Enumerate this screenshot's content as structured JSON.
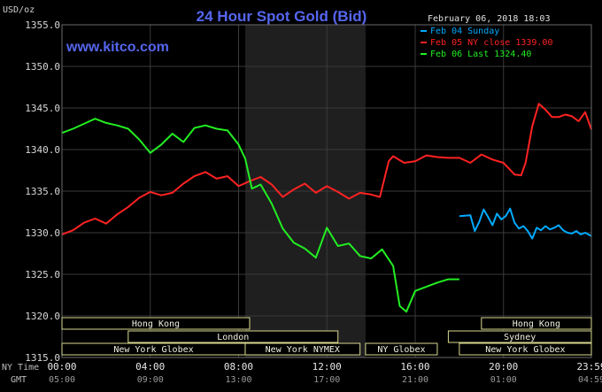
{
  "chart_data": {
    "type": "line",
    "title": "24 Hour Spot Gold (Bid)",
    "unit_label": "USD/oz",
    "watermark": "www.kitco.com",
    "timestamp": "February 06, 2018 18:03",
    "ylim": [
      1315,
      1355
    ],
    "y_ticks": [
      "1355.0",
      "1350.0",
      "1345.0",
      "1340.0",
      "1335.0",
      "1330.0",
      "1325.0",
      "1320.0",
      "1315.0"
    ],
    "x_axis_label_ny": "NY Time",
    "x_axis_label_gmt": "GMT",
    "x_ticks_ny": [
      "00:00",
      "04:00",
      "08:00",
      "12:00",
      "16:00",
      "20:00",
      "23:59"
    ],
    "x_ticks_gmt": [
      "05:00",
      "09:00",
      "13:00",
      "17:00",
      "21:00",
      "01:00",
      "04:59"
    ],
    "shaded_region": {
      "from": 8.3,
      "to": 13.75
    },
    "legend": [
      {
        "label": "Feb 04 Sunday",
        "color": "#00aaff"
      },
      {
        "label": "Feb 05 NY close 1339.00",
        "color": "#ff2222"
      },
      {
        "label": "Feb 06 Last 1324.40",
        "color": "#22ee22"
      }
    ],
    "sessions": [
      {
        "label": "Hong Kong",
        "from": 0.0,
        "to": 8.5,
        "row": 1
      },
      {
        "label": "London",
        "from": 3.0,
        "to": 12.5,
        "row": 2
      },
      {
        "label": "New York Globex",
        "from": 0.0,
        "to": 8.3,
        "row": 3
      },
      {
        "label": "New York NYMEX",
        "from": 8.3,
        "to": 13.5,
        "row": 3
      },
      {
        "label": "NY Globex",
        "from": 13.75,
        "to": 17.0,
        "row": 3
      },
      {
        "label": "Hong Kong",
        "from": 19.0,
        "to": 23.98,
        "row": 1
      },
      {
        "label": "Sydney",
        "from": 17.5,
        "to": 23.98,
        "row": 2
      },
      {
        "label": "New York Globex",
        "from": 18.0,
        "to": 23.98,
        "row": 3
      }
    ],
    "series": [
      {
        "name": "Feb 04 Sunday",
        "color": "#00aaff",
        "x": [
          18.0,
          18.5,
          18.7,
          18.9,
          19.1,
          19.3,
          19.5,
          19.7,
          19.9,
          20.1,
          20.3,
          20.5,
          20.7,
          20.9,
          21.1,
          21.3,
          21.5,
          21.7,
          21.9,
          22.1,
          22.3,
          22.5,
          22.7,
          22.9,
          23.1,
          23.3,
          23.5,
          23.7,
          23.98
        ],
        "y": [
          1332.0,
          1332.1,
          1330.2,
          1331.3,
          1332.8,
          1331.9,
          1330.9,
          1332.3,
          1331.6,
          1332.0,
          1332.9,
          1331.2,
          1330.5,
          1330.8,
          1330.2,
          1329.3,
          1330.6,
          1330.3,
          1330.8,
          1330.4,
          1330.6,
          1330.9,
          1330.3,
          1330.0,
          1329.9,
          1330.2,
          1329.8,
          1330.0,
          1329.6
        ]
      },
      {
        "name": "Feb 05 NY close 1339.00",
        "color": "#ff2222",
        "x": [
          0.0,
          0.5,
          1.0,
          1.5,
          2.0,
          2.5,
          3.0,
          3.5,
          4.0,
          4.5,
          5.0,
          5.5,
          6.0,
          6.5,
          7.0,
          7.5,
          8.0,
          8.5,
          9.0,
          9.5,
          10.0,
          10.5,
          11.0,
          11.5,
          12.0,
          12.5,
          13.0,
          13.5,
          14.0,
          14.4,
          14.8,
          15.0,
          15.5,
          16.0,
          16.5,
          17.0,
          17.5,
          18.0,
          18.5,
          19.0,
          19.5,
          20.0,
          20.5,
          20.8,
          21.0,
          21.3,
          21.6,
          21.9,
          22.2,
          22.5,
          22.8,
          23.1,
          23.4,
          23.7,
          23.98
        ],
        "y": [
          1329.8,
          1330.3,
          1331.2,
          1331.7,
          1331.1,
          1332.2,
          1333.1,
          1334.2,
          1334.9,
          1334.5,
          1334.8,
          1335.9,
          1336.8,
          1337.3,
          1336.5,
          1336.8,
          1335.6,
          1336.2,
          1336.7,
          1335.8,
          1334.3,
          1335.2,
          1335.9,
          1334.8,
          1335.6,
          1334.9,
          1334.1,
          1334.8,
          1334.6,
          1334.3,
          1338.6,
          1339.2,
          1338.4,
          1338.6,
          1339.3,
          1339.1,
          1339.0,
          1339.0,
          1338.4,
          1339.4,
          1338.8,
          1338.4,
          1337.0,
          1336.9,
          1338.4,
          1342.8,
          1345.5,
          1344.8,
          1343.9,
          1343.9,
          1344.2,
          1344.0,
          1343.4,
          1344.5,
          1342.4
        ]
      },
      {
        "name": "Feb 06 Last 1324.40",
        "color": "#22ee22",
        "x": [
          0.0,
          0.5,
          1.0,
          1.5,
          2.0,
          2.5,
          3.0,
          3.5,
          4.0,
          4.5,
          5.0,
          5.5,
          6.0,
          6.5,
          7.0,
          7.5,
          8.0,
          8.3,
          8.6,
          9.0,
          9.5,
          10.0,
          10.5,
          11.0,
          11.5,
          12.0,
          12.5,
          13.0,
          13.5,
          14.0,
          14.5,
          15.0,
          15.3,
          15.6,
          16.0,
          16.5,
          17.0,
          17.5,
          18.0
        ],
        "y": [
          1342.0,
          1342.5,
          1343.1,
          1343.7,
          1343.2,
          1342.9,
          1342.5,
          1341.2,
          1339.6,
          1340.6,
          1341.9,
          1340.9,
          1342.6,
          1342.9,
          1342.5,
          1342.3,
          1340.6,
          1338.9,
          1335.3,
          1335.8,
          1333.5,
          1330.5,
          1328.8,
          1328.1,
          1327.0,
          1330.6,
          1328.4,
          1328.7,
          1327.2,
          1326.9,
          1328.0,
          1326.0,
          1321.2,
          1320.5,
          1323.0,
          1323.5,
          1324.0,
          1324.4,
          1324.4
        ]
      }
    ]
  }
}
